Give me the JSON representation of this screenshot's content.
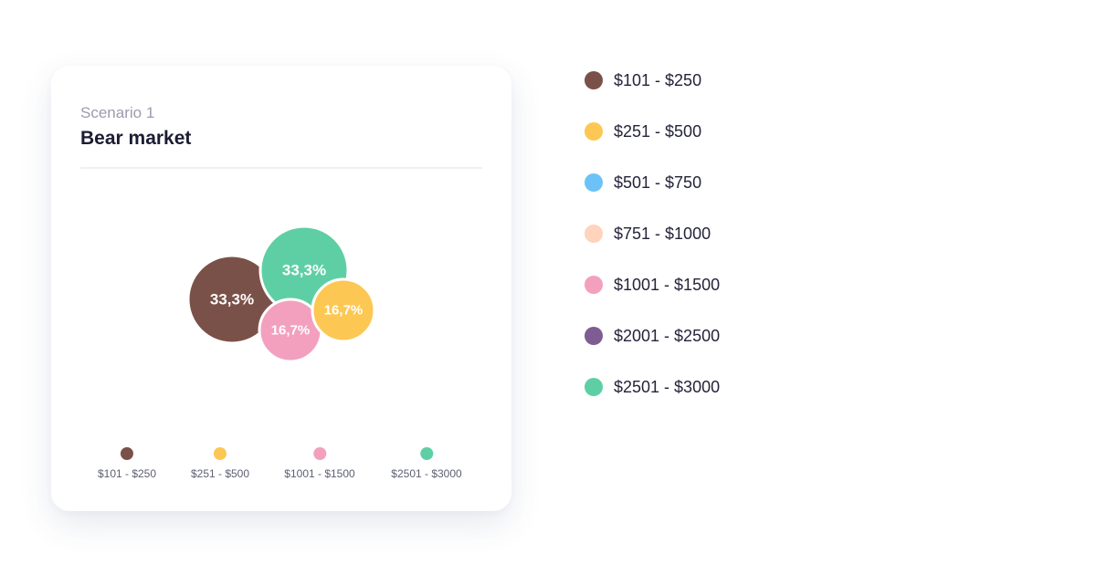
{
  "card": {
    "subtitle": "Scenario 1",
    "title": "Bear market"
  },
  "chart_data": {
    "type": "bubble",
    "series": [
      {
        "name": "$101 - $250",
        "value": 33.3,
        "label": "33,3%",
        "color": "#7a5148"
      },
      {
        "name": "$2501 - $3000",
        "value": 33.3,
        "label": "33,3%",
        "color": "#5ecfa4"
      },
      {
        "name": "$1001 - $1500",
        "value": 16.7,
        "label": "16,7%",
        "color": "#f3a0be"
      },
      {
        "name": "$251 - $500",
        "value": 16.7,
        "label": "16,7%",
        "color": "#fcc853"
      }
    ],
    "legend": [
      "$101 - $250",
      "$251 - $500",
      "$1001 - $1500",
      "$2501 - $3000"
    ]
  },
  "legend": {
    "items": [
      {
        "label": "$101 - $250",
        "color": "#7a5148"
      },
      {
        "label": "$251 - $500",
        "color": "#fcc853"
      },
      {
        "label": "$501 - $750",
        "color": "#6cc2f6"
      },
      {
        "label": "$751 - $1000",
        "color": "#ffd3bc"
      },
      {
        "label": "$1001 - $1500",
        "color": "#f3a0be"
      },
      {
        "label": "$2001 - $2500",
        "color": "#7f5c92"
      },
      {
        "label": "$2501 - $3000",
        "color": "#5ecfa4"
      }
    ]
  }
}
